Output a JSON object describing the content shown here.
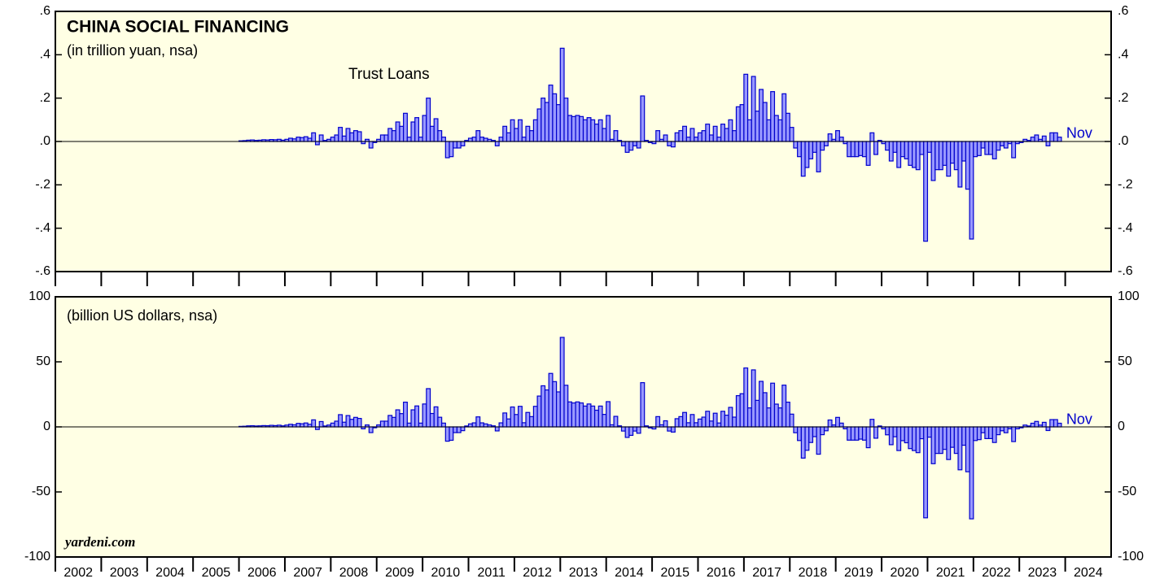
{
  "chart_data": [
    {
      "type": "bar",
      "title": "CHINA SOCIAL FINANCING",
      "subtitle": "(in trillion yuan, nsa)",
      "annotations": [
        "Trust Loans",
        "Nov"
      ],
      "color": "#9999ff",
      "edge_color": "#0000cc",
      "xlim": [
        2002,
        2025
      ],
      "xticks": [
        2002,
        2003,
        2004,
        2005,
        2006,
        2007,
        2008,
        2009,
        2010,
        2011,
        2012,
        2013,
        2014,
        2015,
        2016,
        2017,
        2018,
        2019,
        2020,
        2021,
        2022,
        2023,
        2024
      ],
      "ylim": [
        -0.6,
        0.6
      ],
      "yticks": [
        {
          "value": 0.6,
          "label": ".6"
        },
        {
          "value": 0.4,
          "label": ".4"
        },
        {
          "value": 0.2,
          "label": ".2"
        },
        {
          "value": 0,
          "label": ".0"
        },
        {
          "value": -0.2,
          "label": "-.2"
        },
        {
          "value": -0.4,
          "label": "-.4"
        },
        {
          "value": -0.6,
          "label": "-.6"
        }
      ],
      "x": [
        2006,
        2006,
        2006,
        2006,
        2006,
        2006,
        2006,
        2006,
        2006,
        2006,
        2006,
        2006,
        2007,
        2007,
        2007,
        2007,
        2007,
        2007,
        2007,
        2007,
        2007,
        2007,
        2007,
        2007,
        2008,
        2008,
        2008,
        2008,
        2008,
        2008,
        2008,
        2008,
        2008,
        2008,
        2008,
        2008,
        2009,
        2009,
        2009,
        2009,
        2009,
        2009,
        2009,
        2009,
        2009,
        2009,
        2009,
        2009,
        2010,
        2010,
        2010,
        2010,
        2010,
        2010,
        2010,
        2010,
        2010,
        2010,
        2010,
        2010,
        2011,
        2011,
        2011,
        2011,
        2011,
        2011,
        2011,
        2011,
        2011,
        2011,
        2011,
        2011,
        2012,
        2012,
        2012,
        2012,
        2012,
        2012,
        2012,
        2012,
        2012,
        2012,
        2012,
        2012,
        2013,
        2013,
        2013,
        2013,
        2013,
        2013,
        2013,
        2013,
        2013,
        2013,
        2013,
        2013,
        2014,
        2014,
        2014,
        2014,
        2014,
        2014,
        2014,
        2014,
        2014,
        2014,
        2014,
        2014,
        2015,
        2015,
        2015,
        2015,
        2015,
        2015,
        2015,
        2015,
        2015,
        2015,
        2015,
        2015,
        2016,
        2016,
        2016,
        2016,
        2016,
        2016,
        2016,
        2016,
        2016,
        2016,
        2016,
        2016,
        2017,
        2017,
        2017,
        2017,
        2017,
        2017,
        2017,
        2017,
        2017,
        2017,
        2017,
        2017,
        2018,
        2018,
        2018,
        2018,
        2018,
        2018,
        2018,
        2018,
        2018,
        2018,
        2018,
        2018,
        2019,
        2019,
        2019,
        2019,
        2019,
        2019,
        2019,
        2019,
        2019,
        2019,
        2019,
        2019,
        2020,
        2020,
        2020,
        2020,
        2020,
        2020,
        2020,
        2020,
        2020,
        2020,
        2020,
        2020,
        2021,
        2021,
        2021,
        2021,
        2021,
        2021,
        2021,
        2021,
        2021,
        2021,
        2021,
        2021,
        2022,
        2022,
        2022,
        2022,
        2022,
        2022,
        2022,
        2022,
        2022,
        2022,
        2022,
        2022,
        2023,
        2023,
        2023,
        2023,
        2023,
        2023,
        2023,
        2023,
        2023,
        2023,
        2023
      ],
      "values": [
        0.003,
        0.004,
        0.006,
        0.007,
        0.005,
        0.006,
        0.008,
        0.007,
        0.009,
        0.008,
        0.01,
        0.006,
        0.01,
        0.015,
        0.012,
        0.02,
        0.018,
        0.022,
        0.015,
        0.04,
        -0.015,
        0.03,
        0.005,
        0.01,
        0.02,
        0.03,
        0.065,
        0.025,
        0.06,
        0.04,
        0.05,
        0.045,
        -0.01,
        0.01,
        -0.03,
        -0.005,
        0.01,
        0.03,
        0.03,
        0.06,
        0.05,
        0.09,
        0.07,
        0.13,
        0.02,
        0.09,
        0.11,
        0.02,
        0.12,
        0.2,
        0.07,
        0.105,
        0.05,
        0.02,
        -0.075,
        -0.07,
        -0.03,
        -0.03,
        -0.02,
        0.005,
        0.015,
        0.02,
        0.05,
        0.02,
        0.015,
        0.01,
        0.005,
        -0.02,
        0.02,
        0.07,
        0.04,
        0.1,
        0.06,
        0.1,
        0.02,
        0.07,
        0.05,
        0.1,
        0.15,
        0.2,
        0.18,
        0.26,
        0.22,
        0.17,
        0.43,
        0.2,
        0.12,
        0.115,
        0.12,
        0.115,
        0.1,
        0.11,
        0.1,
        0.08,
        0.1,
        0.06,
        0.12,
        0.01,
        0.05,
        0.005,
        -0.02,
        -0.05,
        -0.04,
        -0.02,
        -0.03,
        0.21,
        0.005,
        -0.005,
        -0.01,
        0.05,
        0.01,
        0.03,
        -0.02,
        -0.025,
        0.04,
        0.05,
        0.07,
        0.02,
        0.06,
        0.02,
        0.04,
        0.05,
        0.08,
        0.03,
        0.07,
        0.02,
        0.08,
        0.06,
        0.1,
        0.05,
        0.16,
        0.17,
        0.31,
        0.1,
        0.3,
        0.14,
        0.24,
        0.18,
        0.1,
        0.23,
        0.12,
        0.1,
        0.22,
        0.13,
        0.065,
        -0.03,
        -0.07,
        -0.16,
        -0.12,
        -0.08,
        -0.05,
        -0.14,
        -0.04,
        -0.02,
        0.035,
        0.01,
        0.05,
        0.02,
        -0.01,
        -0.07,
        -0.07,
        -0.07,
        -0.065,
        -0.07,
        -0.11,
        0.04,
        -0.06,
        0.005,
        -0.01,
        -0.04,
        -0.09,
        -0.05,
        -0.12,
        -0.07,
        -0.08,
        -0.11,
        -0.12,
        -0.13,
        -0.06,
        -0.46,
        -0.05,
        -0.18,
        -0.13,
        -0.13,
        -0.11,
        -0.16,
        -0.1,
        -0.13,
        -0.21,
        -0.09,
        -0.22,
        -0.45,
        -0.07,
        -0.065,
        -0.03,
        -0.06,
        -0.06,
        -0.08,
        -0.04,
        -0.02,
        -0.03,
        -0.01,
        -0.075,
        -0.01,
        -0.005,
        0.01,
        0.005,
        0.02,
        0.03,
        0.01,
        0.025,
        -0.02,
        0.04,
        0.04,
        0.02
      ]
    },
    {
      "type": "bar",
      "subtitle": "(billion US dollars, nsa)",
      "source": "yardeni.com",
      "annotations": [
        "Nov"
      ],
      "color": "#9999ff",
      "edge_color": "#0000cc",
      "xlim": [
        2002,
        2025
      ],
      "xticks": [
        2002,
        2003,
        2004,
        2005,
        2006,
        2007,
        2008,
        2009,
        2010,
        2011,
        2012,
        2013,
        2014,
        2015,
        2016,
        2017,
        2018,
        2019,
        2020,
        2021,
        2022,
        2023,
        2024
      ],
      "ylim": [
        -100,
        100
      ],
      "yticks": [
        100,
        50,
        0,
        -50,
        -100
      ],
      "x": [
        2006,
        2006,
        2006,
        2006,
        2006,
        2006,
        2006,
        2006,
        2006,
        2006,
        2006,
        2006,
        2007,
        2007,
        2007,
        2007,
        2007,
        2007,
        2007,
        2007,
        2007,
        2007,
        2007,
        2007,
        2008,
        2008,
        2008,
        2008,
        2008,
        2008,
        2008,
        2008,
        2008,
        2008,
        2008,
        2008,
        2009,
        2009,
        2009,
        2009,
        2009,
        2009,
        2009,
        2009,
        2009,
        2009,
        2009,
        2009,
        2010,
        2010,
        2010,
        2010,
        2010,
        2010,
        2010,
        2010,
        2010,
        2010,
        2010,
        2010,
        2011,
        2011,
        2011,
        2011,
        2011,
        2011,
        2011,
        2011,
        2011,
        2011,
        2011,
        2011,
        2012,
        2012,
        2012,
        2012,
        2012,
        2012,
        2012,
        2012,
        2012,
        2012,
        2012,
        2012,
        2013,
        2013,
        2013,
        2013,
        2013,
        2013,
        2013,
        2013,
        2013,
        2013,
        2013,
        2013,
        2014,
        2014,
        2014,
        2014,
        2014,
        2014,
        2014,
        2014,
        2014,
        2014,
        2014,
        2014,
        2015,
        2015,
        2015,
        2015,
        2015,
        2015,
        2015,
        2015,
        2015,
        2015,
        2015,
        2015,
        2016,
        2016,
        2016,
        2016,
        2016,
        2016,
        2016,
        2016,
        2016,
        2016,
        2016,
        2016,
        2017,
        2017,
        2017,
        2017,
        2017,
        2017,
        2017,
        2017,
        2017,
        2017,
        2017,
        2017,
        2018,
        2018,
        2018,
        2018,
        2018,
        2018,
        2018,
        2018,
        2018,
        2018,
        2018,
        2018,
        2019,
        2019,
        2019,
        2019,
        2019,
        2019,
        2019,
        2019,
        2019,
        2019,
        2019,
        2019,
        2020,
        2020,
        2020,
        2020,
        2020,
        2020,
        2020,
        2020,
        2020,
        2020,
        2020,
        2020,
        2021,
        2021,
        2021,
        2021,
        2021,
        2021,
        2021,
        2021,
        2021,
        2021,
        2021,
        2021,
        2022,
        2022,
        2022,
        2022,
        2022,
        2022,
        2022,
        2022,
        2022,
        2022,
        2022,
        2022,
        2023,
        2023,
        2023,
        2023,
        2023,
        2023,
        2023,
        2023,
        2023,
        2023,
        2023
      ],
      "values": [
        0.4,
        0.5,
        0.8,
        0.9,
        0.7,
        0.8,
        1.0,
        0.9,
        1.2,
        1.0,
        1.3,
        0.8,
        1.4,
        2.0,
        1.6,
        2.7,
        2.4,
        3.0,
        2.0,
        5.4,
        -2.0,
        4.1,
        0.7,
        1.4,
        2.9,
        4.4,
        9.4,
        3.6,
        8.7,
        5.8,
        7.3,
        6.5,
        -1.5,
        1.5,
        -4.4,
        -0.7,
        1.5,
        4.4,
        4.4,
        8.8,
        7.3,
        13.1,
        10.2,
        19.0,
        2.9,
        13.1,
        16.1,
        2.9,
        17.6,
        29.4,
        10.3,
        15.4,
        7.4,
        2.9,
        -11.0,
        -10.3,
        -4.4,
        -4.4,
        -2.9,
        0.7,
        2.3,
        3.1,
        7.7,
        3.1,
        2.3,
        1.5,
        0.8,
        -3.1,
        3.1,
        10.7,
        6.1,
        15.3,
        9.5,
        15.8,
        3.2,
        11.1,
        7.9,
        15.8,
        23.7,
        31.6,
        28.4,
        41.1,
        34.8,
        26.9,
        68.8,
        32.0,
        19.2,
        18.4,
        19.2,
        18.4,
        16.0,
        17.6,
        16.0,
        12.8,
        16.0,
        9.6,
        19.4,
        1.6,
        8.1,
        0.8,
        -3.2,
        -8.1,
        -6.5,
        -3.2,
        -4.9,
        34.0,
        0.8,
        -0.8,
        -1.6,
        7.9,
        1.6,
        4.7,
        -3.2,
        -4.0,
        6.3,
        7.9,
        11.1,
        3.2,
        9.5,
        3.2,
        6.0,
        7.5,
        12.0,
        4.5,
        10.5,
        3.0,
        12.0,
        9.0,
        15.0,
        7.5,
        24.0,
        25.5,
        45.3,
        14.6,
        43.8,
        20.4,
        35.0,
        26.3,
        14.6,
        33.6,
        17.5,
        14.6,
        32.1,
        19.0,
        9.8,
        -4.5,
        -10.5,
        -24.0,
        -18.0,
        -12.0,
        -7.5,
        -21.0,
        -6.0,
        -3.0,
        5.3,
        1.5,
        7.3,
        2.9,
        -1.5,
        -10.2,
        -10.2,
        -10.2,
        -9.4,
        -10.2,
        -16.0,
        5.8,
        -8.7,
        0.7,
        -1.5,
        -6.1,
        -13.7,
        -7.6,
        -18.2,
        -10.6,
        -12.2,
        -16.7,
        -18.2,
        -19.8,
        -9.1,
        -69.9,
        -7.9,
        -28.3,
        -20.4,
        -20.4,
        -17.3,
        -25.1,
        -15.7,
        -20.4,
        -33.0,
        -14.1,
        -34.5,
        -70.7,
        -10.5,
        -9.8,
        -4.5,
        -9.0,
        -9.0,
        -12.0,
        -6.0,
        -3.0,
        -4.5,
        -1.5,
        -11.3,
        -1.5,
        -0.7,
        1.4,
        0.7,
        2.8,
        4.2,
        1.4,
        3.5,
        -2.8,
        5.6,
        5.6,
        2.8
      ]
    }
  ]
}
